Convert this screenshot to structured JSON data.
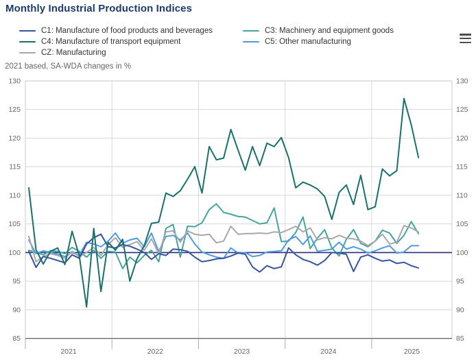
{
  "header": {
    "title": "Monthly Industrial Production Indices"
  },
  "subtitle": "2021 based, SA-WDA changes in %",
  "menu": {
    "icon": "hamburger-icon",
    "tooltip": "Chart context menu"
  },
  "colors": {
    "title": "#1a3c6e",
    "axis_text": "#666666",
    "grid": "#d8d8d8",
    "border": "#c9c9c9",
    "axis_line": "#565656",
    "reference_line": "#2c2d7d",
    "background": "#ffffff"
  },
  "chart_data": {
    "type": "line",
    "title": "Monthly Industrial Production Indices",
    "subtitle": "2021 based, SA-WDA changes in %",
    "x_unit": "month",
    "x_range": [
      "2021-01",
      "2025-07"
    ],
    "x_tick_labels": [
      "2021",
      "2022",
      "2023",
      "2024",
      "2025"
    ],
    "ylim": [
      85,
      130
    ],
    "y_tick_step": 5,
    "reference_line": 100,
    "grid": true,
    "legend_position": "top",
    "series": [
      {
        "name": "C1: Manufacture of food products and beverages",
        "code": "C1",
        "color": "#34549e",
        "values": [
          100.2,
          97.4,
          99.3,
          99,
          98.6,
          98.2,
          99.6,
          99,
          101.5,
          102.6,
          103.2,
          101,
          100.8,
          101.4,
          101.1,
          100.6,
          100,
          98.8,
          99.8,
          99.5,
          100.6,
          100.5,
          100.2,
          99.2,
          98.4,
          98.6,
          98.9,
          99,
          99.4,
          99.9,
          99.7,
          97.5,
          96.6,
          97.7,
          97.2,
          97.5,
          100.8,
          99.6,
          98.8,
          98.4,
          97.8,
          98.6,
          100,
          99.9,
          99.7,
          96.7,
          99.2,
          99.6,
          99,
          98.5,
          98.7,
          98.1,
          98.3,
          97.7,
          97.3
        ]
      },
      {
        "name": "C3: Machinery and equipment goods",
        "code": "C3",
        "color": "#44a59d",
        "values": [
          100.4,
          100,
          99.6,
          100.3,
          100.2,
          99.8,
          100.9,
          100.2,
          99.2,
          100.4,
          99,
          100.2,
          100.1,
          97.2,
          99.2,
          98.2,
          99.5,
          100.4,
          98.4,
          104.2,
          104.9,
          99.2,
          104.6,
          104.5,
          105.2,
          107.5,
          108.5,
          107,
          106.7,
          106.3,
          106.2,
          105.6,
          105,
          105.2,
          107.8,
          101.9,
          102,
          103.5,
          106.2,
          100.7,
          102.5,
          104,
          100.8,
          99.4,
          102.3,
          104,
          101.6,
          101,
          102,
          103.9,
          103.4,
          101.6,
          103,
          105.4,
          103.3
        ]
      },
      {
        "name": "C4: Manufacture of transport equipment",
        "code": "C4",
        "color": "#17706a",
        "values": [
          111.3,
          100.5,
          98,
          100.2,
          100.8,
          97.9,
          103.7,
          99.4,
          90.5,
          104.2,
          93.2,
          101.8,
          100.4,
          102.3,
          95,
          98.9,
          101.2,
          105.1,
          105.3,
          110.4,
          109.8,
          110.8,
          112.8,
          115,
          110.4,
          118.5,
          116.2,
          116.5,
          121.5,
          117.9,
          114.4,
          118.5,
          115.2,
          119.1,
          118.5,
          120.1,
          116.6,
          111.3,
          112.3,
          111.8,
          111.1,
          109.8,
          105.8,
          110.5,
          111.8,
          108.4,
          113.5,
          107.5,
          108,
          114.6,
          113.4,
          114.3,
          126.9,
          122.3,
          116.6
        ]
      },
      {
        "name": "C5: Other manufacturing",
        "code": "C5",
        "color": "#4f9be0",
        "values": [
          102.2,
          99.8,
          100.3,
          100,
          99.7,
          99.3,
          100,
          99.5,
          101.8,
          101.5,
          101,
          102,
          103.4,
          101.6,
          102.2,
          102.5,
          101,
          103.4,
          100.2,
          102.8,
          103,
          102.2,
          103.4,
          101.5,
          100.1,
          99.6,
          99.2,
          99,
          100.8,
          99.9,
          100,
          99.3,
          99.5,
          100.1,
          100.2,
          100.3,
          102.2,
          102.8,
          101.4,
          102.9,
          100.2,
          100.4,
          100.6,
          101.8,
          100.6,
          101,
          100.6,
          99.9,
          100.3,
          100.8,
          101.2,
          99.9,
          100.1,
          101.2,
          101.2
        ]
      },
      {
        "name": "CZ: Manufacturing",
        "code": "CZ",
        "color": "#a8a8a8",
        "values": [
          102.8,
          98.4,
          99.3,
          99.8,
          99.5,
          99,
          100.2,
          99.3,
          100,
          100.9,
          99.5,
          101.4,
          102.6,
          100.9,
          101.4,
          101.9,
          100.4,
          102.4,
          99.8,
          103.6,
          103.8,
          101.8,
          103.8,
          103.2,
          103,
          103.2,
          101.7,
          102,
          104.6,
          103.2,
          103.3,
          103.3,
          103.4,
          103.3,
          103.6,
          103.5,
          104,
          104.6,
          103.6,
          104.3,
          102.2,
          102.6,
          102.4,
          103,
          102.5,
          102.4,
          102,
          101.2,
          102,
          103.2,
          101.5,
          101.8,
          104.7,
          104.3,
          103.6
        ]
      }
    ],
    "legend_order": [
      0,
      1,
      2,
      3,
      4
    ],
    "draw_order": [
      1,
      3,
      4,
      0,
      2
    ]
  }
}
